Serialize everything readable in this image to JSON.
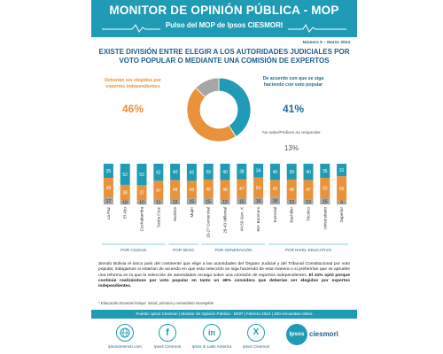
{
  "header": {
    "title": "MONITOR DE OPINIÓN PÚBLICA - MOP",
    "subtitle": "Pulso del MOP de Ipsos CIESMORI",
    "issue": "Número 5 – Marzo 2024"
  },
  "colors": {
    "primary": "#1f9bb5",
    "secondary": "#e8923a",
    "neutral": "#a6a6a6",
    "title": "#1f5f8b"
  },
  "chart_data": [
    {
      "type": "pie",
      "title": "EXISTE DIVISIÓN ENTRE ELEGIR A LOS AUTORIDADES JUDICIALES POR VOTO POPULAR O MEDIANTE UNA COMISIÓN DE EXPERTOS",
      "slices": [
        {
          "name": "De acuerdo con que se siga haciendo con voto popular",
          "value": 41,
          "label": "41%"
        },
        {
          "name": "Deberían ser elegidos por expertos independientes",
          "value": 46,
          "label": "46%"
        },
        {
          "name": "No sabe/Prefiere no responder",
          "value": 13,
          "label": "13%"
        }
      ]
    },
    {
      "type": "bar",
      "stacked": true,
      "groups": [
        {
          "name": "POR CIUDAD",
          "start": 0,
          "count": 4
        },
        {
          "name": "POR SEXO",
          "start": 4,
          "count": 2
        },
        {
          "name": "POR GENERACIÓN",
          "start": 6,
          "count": 4
        },
        {
          "name": "POR NIVEL EDUCATIVO",
          "start": 10,
          "count": 5
        }
      ],
      "categories": [
        "La Paz",
        "El Alto",
        "Cochabamba",
        "Santa Cruz",
        "Hombre",
        "Mujer",
        "18-27 Centennial",
        "28-43 Millenial",
        "44-59 Gen. X",
        "60+ Boomers",
        "Esencial",
        "Bachiller",
        "Técnico",
        "Universitario",
        "Superior"
      ],
      "series": [
        {
          "values": [
            35,
            52,
            53,
            42,
            40,
            42,
            39,
            40,
            38,
            34,
            40,
            39,
            40,
            35,
            31
          ]
        },
        {
          "values": [
            48,
            38,
            37,
            47,
            48,
            43,
            46,
            48,
            47,
            50,
            42,
            48,
            47,
            50,
            60
          ]
        },
        {
          "values": [
            17,
            10,
            10,
            11,
            12,
            15,
            15,
            12,
            15,
            16,
            18,
            13,
            13,
            15,
            9
          ]
        }
      ]
    }
  ],
  "body": {
    "text1": "Siendo Bolivia el único país del continente que elige a las autoridades del Órgano Judicial y del Tribunal Constitucional por voto popular, indagamos si estarían de acuerdo en que esta selección se siga haciendo de esta manera o si preferirían que se apruebe una reforma en la que la selección de autoridades recaiga sobre una comisión de expertos independientes.",
    "text2": "El 41% optó porque continúe realizándose por voto popular en tanto un 46% considera que deberían ser elegidos por expertos independientes.",
    "note": "* Educación Esencial incluye: inicial, primaria y secundario incompleto"
  },
  "source": "Fuente: Ipsos Ciesmori | Monitor de Opinión Pública - MOP | Febrero 2024 | 400 encuestas online",
  "footer": {
    "website": "ipsosciesmori.com",
    "facebook": "Ipsos Ciesmori",
    "linkedin": "Ipsos in Latin America",
    "x": "Ipsos Ciesmori",
    "logo": "Ipsos",
    "brand": "ciesmori"
  }
}
